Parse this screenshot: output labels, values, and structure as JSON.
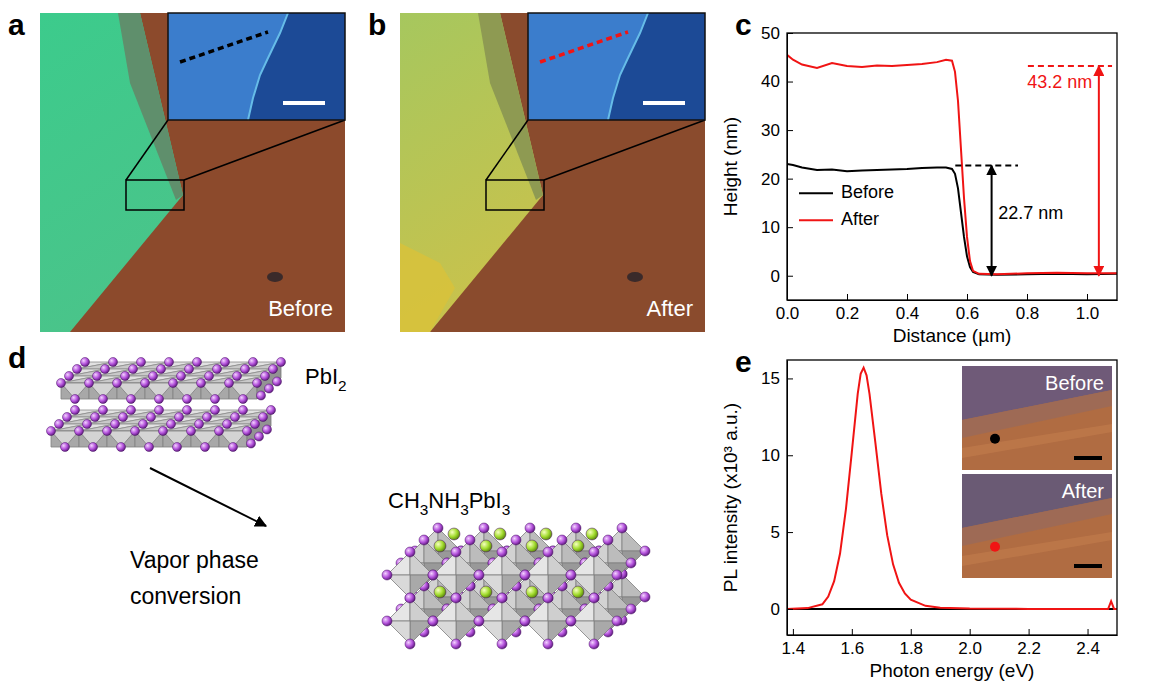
{
  "panels": {
    "a": {
      "letter": "a",
      "caption": "Before"
    },
    "b": {
      "letter": "b",
      "caption": "After"
    },
    "d": {
      "letter": "d",
      "reactant": "PbI2",
      "product": "CH3NH3PbI3",
      "process": "Vapor phase conversion"
    }
  },
  "chart_data": [
    {
      "type": "line",
      "panel": "c",
      "x_label": "Distance (µm)",
      "y_label": "Height (nm)",
      "x": [
        0,
        0.02,
        0.05,
        0.1,
        0.15,
        0.2,
        0.25,
        0.3,
        0.35,
        0.4,
        0.45,
        0.5,
        0.53,
        0.55,
        0.56,
        0.57,
        0.58,
        0.59,
        0.6,
        0.61,
        0.62,
        0.64,
        0.7,
        0.8,
        0.9,
        1.0,
        1.1
      ],
      "series": [
        {
          "name": "Before",
          "color": "#000000",
          "values": [
            23,
            22.8,
            22.3,
            21.8,
            21.9,
            21.5,
            21.7,
            21.8,
            21.9,
            22,
            22.2,
            22.3,
            22.3,
            22,
            21,
            18,
            13,
            8,
            4,
            1.8,
            0.8,
            0.3,
            0.2,
            0.3,
            0.4,
            0.3,
            0.4
          ]
        },
        {
          "name": "After",
          "color": "#f01414",
          "values": [
            45.5,
            44.5,
            43.5,
            42.8,
            43.8,
            43.2,
            43,
            43.3,
            43.2,
            43.4,
            43.6,
            44,
            44.5,
            44.3,
            42,
            36,
            26,
            16,
            8,
            3,
            1,
            0.4,
            0.3,
            0.5,
            0.6,
            0.5,
            0.5
          ]
        }
      ],
      "xlim": [
        0,
        1.1
      ],
      "xticks": [
        {
          "value": 0,
          "label": "0.0"
        },
        0.2,
        0.4,
        0.6,
        0.8,
        {
          "value": 1,
          "label": "1.0"
        }
      ],
      "ylim": [
        -5,
        50
      ],
      "yticks": [
        0,
        10,
        20,
        30,
        40,
        50
      ],
      "legend": "left",
      "annotations": [
        {
          "text": "22.7 nm",
          "value": 22.7,
          "color": "#000000"
        },
        {
          "text": "43.2 nm",
          "value": 43.2,
          "color": "#f01414"
        }
      ]
    },
    {
      "type": "line",
      "panel": "e",
      "x_label": "Photon energy (eV)",
      "y_label": "PL intensity (x10³ a.u.)",
      "x": [
        1.38,
        1.45,
        1.5,
        1.52,
        1.54,
        1.56,
        1.58,
        1.6,
        1.62,
        1.63,
        1.64,
        1.65,
        1.66,
        1.68,
        1.7,
        1.72,
        1.74,
        1.76,
        1.78,
        1.8,
        1.85,
        1.9,
        2.0,
        2.2,
        2.4,
        2.47,
        2.48,
        2.49,
        2.5
      ],
      "series": [
        {
          "color": "#000000",
          "values": [
            0,
            0,
            0,
            0,
            0,
            0,
            0,
            0,
            0,
            0,
            0,
            0,
            0,
            0,
            0,
            0,
            0,
            0,
            0,
            0,
            0,
            0,
            0,
            0,
            0,
            0,
            0,
            0,
            0
          ]
        },
        {
          "color": "#f01414",
          "values": [
            0,
            0.05,
            0.3,
            0.8,
            1.8,
            3.6,
            6.5,
            10.2,
            14,
            15.3,
            15.7,
            15.2,
            14,
            10.8,
            7.5,
            4.8,
            2.9,
            1.7,
            1,
            0.6,
            0.2,
            0.08,
            0.02,
            0,
            0,
            0,
            0.5,
            0,
            0
          ]
        }
      ],
      "xlim": [
        1.38,
        2.5
      ],
      "xticks": [
        1.4,
        1.6,
        1.8,
        {
          "value": 2,
          "label": "2.0"
        },
        2.2,
        2.4
      ],
      "ylim": [
        -1.7,
        16.2
      ],
      "yticks": [
        0,
        5,
        10,
        15
      ],
      "inset": {
        "labels": [
          "Before",
          "After"
        ]
      }
    }
  ]
}
